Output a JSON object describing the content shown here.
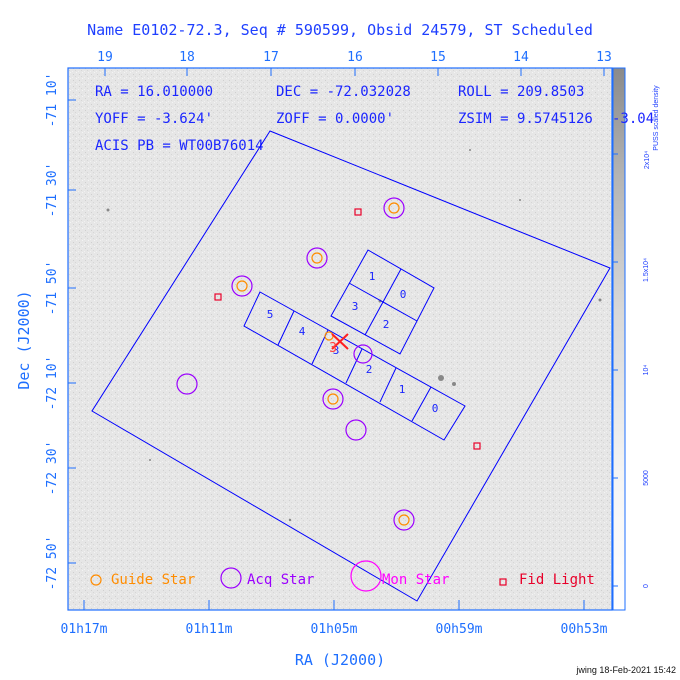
{
  "title": "Name E0102-72.3, Seq # 590599, Obsid 24579, ST Scheduled",
  "footer": "jwing 18-Feb-2021 15:42",
  "axes": {
    "xlabel": "RA (J2000)",
    "ylabel": "Dec (J2000)",
    "bottom_ticks": [
      "01h17m",
      "01h11m",
      "01h05m",
      "00h59m",
      "00h53m"
    ],
    "top_ticks": [
      "19",
      "18",
      "17",
      "16",
      "15",
      "14",
      "13"
    ],
    "left_ticks": [
      "-71 10'",
      "-71 30'",
      "-71 50'",
      "-72 10'",
      "-72 30'",
      "-72 50'"
    ]
  },
  "info": {
    "line1": [
      "RA = 16.010000",
      "DEC = -72.032028",
      "ROLL = 209.8503"
    ],
    "line2": [
      "YOFF =  -3.624'",
      "ZOFF =  0.0000'",
      "ZSIM = 9.5745126"
    ],
    "line2_tail": "-3.04",
    "line3": "ACIS PB = WT00B76014"
  },
  "colorbar": {
    "label": "PUSS scaled density",
    "top_label": "2x10⁴",
    "ticks": [
      "1.5x10⁴",
      "10⁴",
      "5000",
      "0"
    ]
  },
  "ccd_labels": [
    "1",
    "0",
    "3",
    "2",
    "5",
    "4",
    "3",
    "2",
    "1",
    "0"
  ],
  "legend": [
    {
      "label": "Guide Star",
      "color": "#ff8c00"
    },
    {
      "label": "Acq Star",
      "color": "#9b00ff"
    },
    {
      "label": "Mon Star",
      "color": "#ff00ff"
    },
    {
      "label": "Fid Light",
      "color": "#e8002a"
    }
  ],
  "target_label": "3",
  "colors": {
    "axes": "#1e6fff",
    "outline": "#0000ff",
    "title": "#1e3fff",
    "guide": "#ff8c00",
    "acq": "#9b00ff",
    "mon": "#ff00ff",
    "fid": "#e8002a",
    "target": "#ff2020"
  },
  "chart_data": {
    "type": "scatter",
    "title": "Name E0102-72.3, Seq # 590599, Obsid 24579, ST Scheduled",
    "xlabel": "RA (J2000)",
    "ylabel": "Dec (J2000)",
    "x_unit": "RA hours",
    "y_unit": "Dec degrees",
    "xlim": [
      "01h18m",
      "00h52m"
    ],
    "ylim": [
      -73.02,
      -71.06
    ],
    "series": [
      {
        "name": "Guide Star",
        "points": [
          [
            15.75,
            -71.54
          ],
          [
            16.7,
            -71.78
          ],
          [
            17.15,
            -71.88
          ],
          [
            16.25,
            -72.19
          ],
          [
            15.55,
            -72.65
          ]
        ]
      },
      {
        "name": "Acq Star",
        "points": [
          [
            15.75,
            -71.54
          ],
          [
            16.7,
            -71.78
          ],
          [
            17.15,
            -71.88
          ],
          [
            16.25,
            -72.19
          ],
          [
            15.55,
            -72.65
          ],
          [
            18.1,
            -72.13
          ],
          [
            16.05,
            -72.29
          ],
          [
            15.95,
            -72.06
          ]
        ]
      },
      {
        "name": "Fid Light",
        "points": [
          [
            16.05,
            -71.56
          ],
          [
            17.45,
            -71.93
          ],
          [
            14.85,
            -72.41
          ]
        ]
      }
    ],
    "target": [
      16.01,
      -72.032
    ]
  }
}
